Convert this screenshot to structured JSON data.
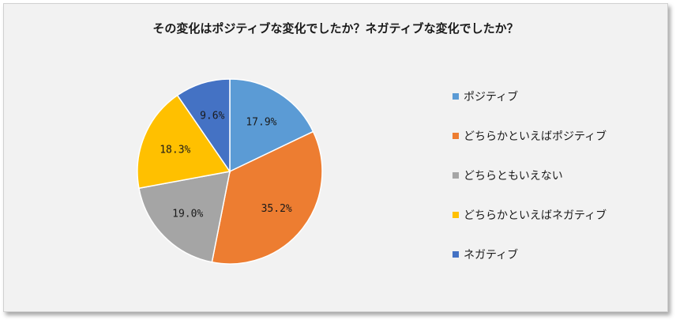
{
  "chart_data": {
    "type": "pie",
    "title": "その変化はポジティブな変化でしたか？ネガティブな変化でしたか？",
    "categories": [
      "ポジティブ",
      "どちらかといえばポジティブ",
      "どちらともいえない",
      "どちらかといえばネガティブ",
      "ネガティブ"
    ],
    "values": [
      17.9,
      35.2,
      19.0,
      18.3,
      9.6
    ],
    "labels": [
      "17.9%",
      "35.2%",
      "19.0%",
      "18.3%",
      "9.6%"
    ],
    "colors": [
      "#5b9bd5",
      "#ed7d31",
      "#a5a5a5",
      "#ffc000",
      "#4472c4"
    ],
    "start_angle": "12 o'clock, clockwise",
    "legend_position": "right"
  }
}
